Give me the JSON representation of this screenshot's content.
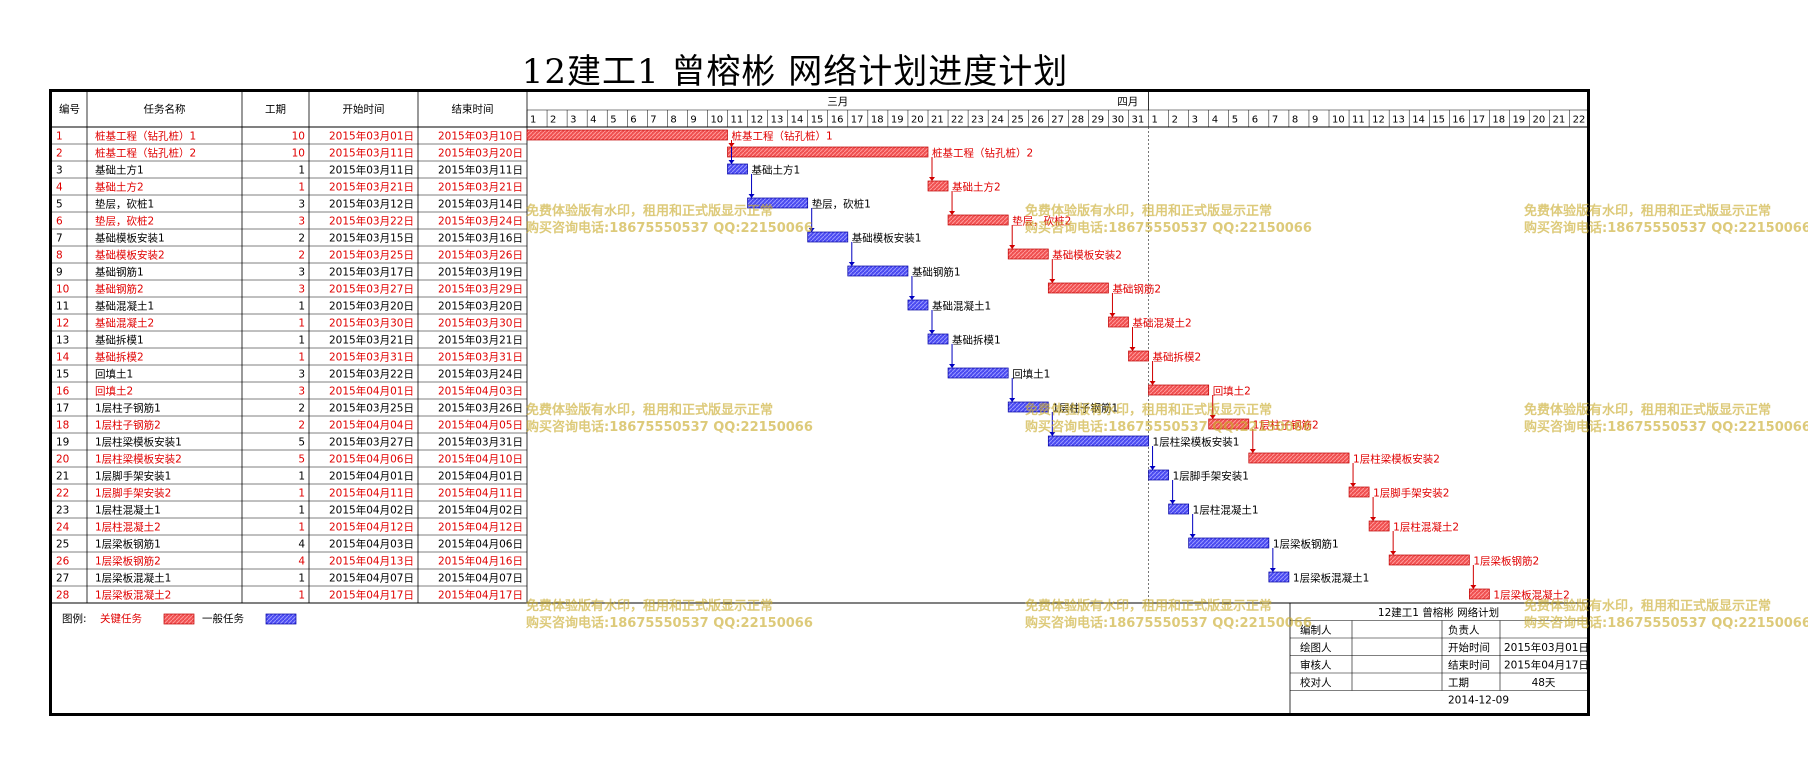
{
  "title": "12建工1  曾榕彬  网络计划进度计划",
  "headers": {
    "id": "编号",
    "name": "任务名称",
    "dur": "工期",
    "start": "开始时间",
    "end": "结束时间"
  },
  "months": [
    "三月",
    "四月"
  ],
  "days_march": [
    "1",
    "2",
    "3",
    "4",
    "5",
    "6",
    "7",
    "8",
    "9",
    "10",
    "11",
    "12",
    "13",
    "14",
    "15",
    "16",
    "17",
    "18",
    "19",
    "20",
    "21",
    "22",
    "23",
    "24",
    "25",
    "26",
    "27",
    "28",
    "29",
    "30",
    "31"
  ],
  "days_april": [
    "1",
    "2",
    "3",
    "4",
    "5",
    "6",
    "7",
    "8",
    "9",
    "10",
    "11",
    "12",
    "13",
    "14",
    "15",
    "16",
    "17",
    "18",
    "19",
    "20",
    "21",
    "22"
  ],
  "colors": {
    "critical": "#ef5050",
    "general": "#5050ee",
    "critical_text": "#e00000",
    "grid": "#000000"
  },
  "tasks": [
    {
      "id": "1",
      "name": "桩基工程（钻孔桩）1",
      "dur": "10",
      "start": "2015年03月01日",
      "end": "2015年03月10日",
      "critical": true,
      "s": 1,
      "e": 10
    },
    {
      "id": "2",
      "name": "桩基工程（钻孔桩）2",
      "dur": "10",
      "start": "2015年03月11日",
      "end": "2015年03月20日",
      "critical": true,
      "s": 11,
      "e": 20
    },
    {
      "id": "3",
      "name": "基础土方1",
      "dur": "1",
      "start": "2015年03月11日",
      "end": "2015年03月11日",
      "critical": false,
      "s": 11,
      "e": 11
    },
    {
      "id": "4",
      "name": "基础土方2",
      "dur": "1",
      "start": "2015年03月21日",
      "end": "2015年03月21日",
      "critical": true,
      "s": 21,
      "e": 21
    },
    {
      "id": "5",
      "name": "垫层，砍桩1",
      "dur": "3",
      "start": "2015年03月12日",
      "end": "2015年03月14日",
      "critical": false,
      "s": 12,
      "e": 14
    },
    {
      "id": "6",
      "name": "垫层，砍桩2",
      "dur": "3",
      "start": "2015年03月22日",
      "end": "2015年03月24日",
      "critical": true,
      "s": 22,
      "e": 24
    },
    {
      "id": "7",
      "name": "基础模板安装1",
      "dur": "2",
      "start": "2015年03月15日",
      "end": "2015年03月16日",
      "critical": false,
      "s": 15,
      "e": 16
    },
    {
      "id": "8",
      "name": "基础模板安装2",
      "dur": "2",
      "start": "2015年03月25日",
      "end": "2015年03月26日",
      "critical": true,
      "s": 25,
      "e": 26
    },
    {
      "id": "9",
      "name": "基础钢筋1",
      "dur": "3",
      "start": "2015年03月17日",
      "end": "2015年03月19日",
      "critical": false,
      "s": 17,
      "e": 19
    },
    {
      "id": "10",
      "name": "基础钢筋2",
      "dur": "3",
      "start": "2015年03月27日",
      "end": "2015年03月29日",
      "critical": true,
      "s": 27,
      "e": 29
    },
    {
      "id": "11",
      "name": "基础混凝土1",
      "dur": "1",
      "start": "2015年03月20日",
      "end": "2015年03月20日",
      "critical": false,
      "s": 20,
      "e": 20
    },
    {
      "id": "12",
      "name": "基础混凝土2",
      "dur": "1",
      "start": "2015年03月30日",
      "end": "2015年03月30日",
      "critical": true,
      "s": 30,
      "e": 30
    },
    {
      "id": "13",
      "name": "基础拆模1",
      "dur": "1",
      "start": "2015年03月21日",
      "end": "2015年03月21日",
      "critical": false,
      "s": 21,
      "e": 21
    },
    {
      "id": "14",
      "name": "基础拆模2",
      "dur": "1",
      "start": "2015年03月31日",
      "end": "2015年03月31日",
      "critical": true,
      "s": 31,
      "e": 31
    },
    {
      "id": "15",
      "name": "回填土1",
      "dur": "3",
      "start": "2015年03月22日",
      "end": "2015年03月24日",
      "critical": false,
      "s": 22,
      "e": 24
    },
    {
      "id": "16",
      "name": "回填土2",
      "dur": "3",
      "start": "2015年04月01日",
      "end": "2015年04月03日",
      "critical": true,
      "s": 32,
      "e": 34
    },
    {
      "id": "17",
      "name": "1层柱子钢筋1",
      "dur": "2",
      "start": "2015年03月25日",
      "end": "2015年03月26日",
      "critical": false,
      "s": 25,
      "e": 26
    },
    {
      "id": "18",
      "name": "1层柱子钢筋2",
      "dur": "2",
      "start": "2015年04月04日",
      "end": "2015年04月05日",
      "critical": true,
      "s": 35,
      "e": 36
    },
    {
      "id": "19",
      "name": "1层柱梁模板安装1",
      "dur": "5",
      "start": "2015年03月27日",
      "end": "2015年03月31日",
      "critical": false,
      "s": 27,
      "e": 31
    },
    {
      "id": "20",
      "name": "1层柱梁模板安装2",
      "dur": "5",
      "start": "2015年04月06日",
      "end": "2015年04月10日",
      "critical": true,
      "s": 37,
      "e": 41
    },
    {
      "id": "21",
      "name": "1层脚手架安装1",
      "dur": "1",
      "start": "2015年04月01日",
      "end": "2015年04月01日",
      "critical": false,
      "s": 32,
      "e": 32
    },
    {
      "id": "22",
      "name": "1层脚手架安装2",
      "dur": "1",
      "start": "2015年04月11日",
      "end": "2015年04月11日",
      "critical": true,
      "s": 42,
      "e": 42
    },
    {
      "id": "23",
      "name": "1层柱混凝土1",
      "dur": "1",
      "start": "2015年04月02日",
      "end": "2015年04月02日",
      "critical": false,
      "s": 33,
      "e": 33
    },
    {
      "id": "24",
      "name": "1层柱混凝土2",
      "dur": "1",
      "start": "2015年04月12日",
      "end": "2015年04月12日",
      "critical": true,
      "s": 43,
      "e": 43
    },
    {
      "id": "25",
      "name": "1层梁板钢筋1",
      "dur": "4",
      "start": "2015年04月03日",
      "end": "2015年04月06日",
      "critical": false,
      "s": 34,
      "e": 37
    },
    {
      "id": "26",
      "name": "1层梁板钢筋2",
      "dur": "4",
      "start": "2015年04月13日",
      "end": "2015年04月16日",
      "critical": true,
      "s": 44,
      "e": 47
    },
    {
      "id": "27",
      "name": "1层梁板混凝土1",
      "dur": "1",
      "start": "2015年04月07日",
      "end": "2015年04月07日",
      "critical": false,
      "s": 38,
      "e": 38
    },
    {
      "id": "28",
      "name": "1层梁板混凝土2",
      "dur": "1",
      "start": "2015年04月17日",
      "end": "2015年04月17日",
      "critical": true,
      "s": 48,
      "e": 48
    }
  ],
  "legend": {
    "label": "图例:",
    "critical": "关键任务",
    "general": "一般任务"
  },
  "info_box": {
    "title": "12建工1  曾榕彬  网络计划",
    "compiler": "编制人",
    "responsible": "负责人",
    "drawer": "绘图人",
    "start_label": "开始时间",
    "start_value": "2015年03月01日",
    "reviewer": "审核人",
    "end_label": "结束时间",
    "end_value": "2015年04月17日",
    "checker": "校对人",
    "dur_label": "工期",
    "dur_value": "48天",
    "date": "2014-12-09"
  },
  "watermark": {
    "line1": "免费体验版有水印，租用和正式版显示正常",
    "line2": "购买咨询电话:18675550537 QQ:22150066"
  }
}
